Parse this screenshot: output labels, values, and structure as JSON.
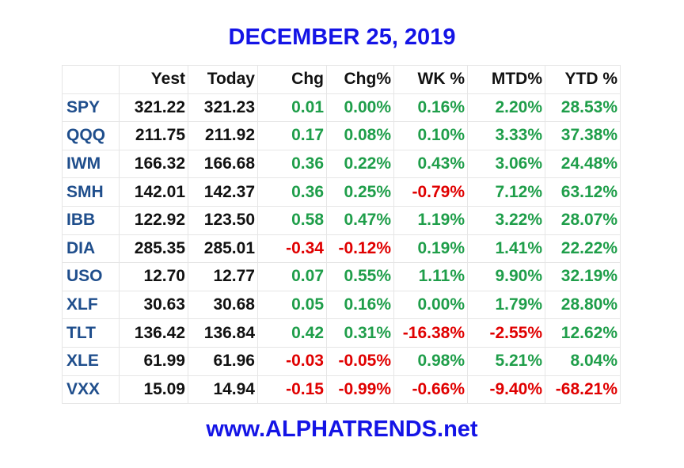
{
  "header": {
    "title": "DECEMBER 25, 2019"
  },
  "table": {
    "columns": [
      "",
      "Yest",
      "Today",
      "Chg",
      "Chg%",
      "WK %",
      "MTD%",
      "YTD %"
    ],
    "rows": [
      [
        "SPY",
        "321.22",
        "321.23",
        "0.01",
        "0.00%",
        "0.16%",
        "2.20%",
        "28.53%"
      ],
      [
        "QQQ",
        "211.75",
        "211.92",
        "0.17",
        "0.08%",
        "0.10%",
        "3.33%",
        "37.38%"
      ],
      [
        "IWM",
        "166.32",
        "166.68",
        "0.36",
        "0.22%",
        "0.43%",
        "3.06%",
        "24.48%"
      ],
      [
        "SMH",
        "142.01",
        "142.37",
        "0.36",
        "0.25%",
        "-0.79%",
        "7.12%",
        "63.12%"
      ],
      [
        "IBB",
        "122.92",
        "123.50",
        "0.58",
        "0.47%",
        "1.19%",
        "3.22%",
        "28.07%"
      ],
      [
        "DIA",
        "285.35",
        "285.01",
        "-0.34",
        "-0.12%",
        "0.19%",
        "1.41%",
        "22.22%"
      ],
      [
        "USO",
        "12.70",
        "12.77",
        "0.07",
        "0.55%",
        "1.11%",
        "9.90%",
        "32.19%"
      ],
      [
        "XLF",
        "30.63",
        "30.68",
        "0.05",
        "0.16%",
        "0.00%",
        "1.79%",
        "28.80%"
      ],
      [
        "TLT",
        "136.42",
        "136.84",
        "0.42",
        "0.31%",
        "-16.38%",
        "-2.55%",
        "12.62%"
      ],
      [
        "XLE",
        "61.99",
        "61.96",
        "-0.03",
        "-0.05%",
        "0.98%",
        "5.21%",
        "8.04%"
      ],
      [
        "VXX",
        "15.09",
        "14.94",
        "-0.15",
        "-0.99%",
        "-0.66%",
        "-9.40%",
        "-68.21%"
      ]
    ]
  },
  "footer": {
    "text": "www.ALPHATRENDS.net"
  }
}
